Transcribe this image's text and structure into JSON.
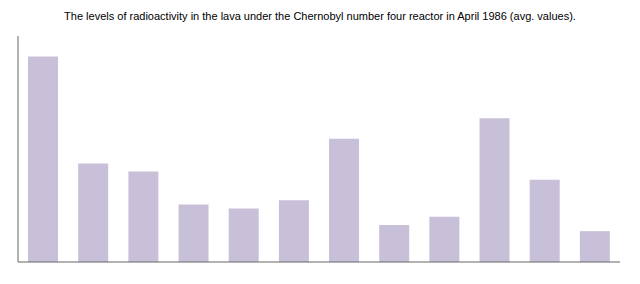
{
  "chart_data": {
    "type": "bar",
    "title": "The levels of radioactivity in the lava under the Chernobyl number four reactor in April 1986 (avg. values).",
    "categories": [
      null,
      null,
      null,
      null,
      null,
      null,
      null,
      null,
      null,
      null,
      null,
      null
    ],
    "values": [
      100,
      48,
      44,
      28,
      26,
      30,
      60,
      18,
      22,
      70,
      40,
      15
    ],
    "color": "#c8c0d8",
    "ylim": [
      0,
      110
    ],
    "grid": false,
    "tick_labels": false
  }
}
